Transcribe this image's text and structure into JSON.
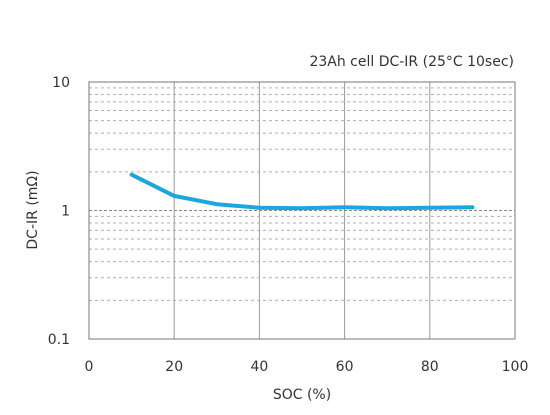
{
  "chart_data": {
    "type": "line",
    "title": "23Ah cell DC-IR (25°C 10sec)",
    "xlabel": "SOC (%)",
    "ylabel": "DC-IR (mΩ)",
    "xlim": [
      0,
      100
    ],
    "ylim": [
      0.1,
      10
    ],
    "yscale": "log",
    "x_ticks": [
      0,
      20,
      40,
      60,
      80,
      100
    ],
    "y_ticks": [
      {
        "value": 0.1,
        "label": "0.1"
      },
      {
        "value": 1,
        "label": "1"
      },
      {
        "value": 10,
        "label": "10"
      }
    ],
    "grid": true,
    "legend": "none",
    "series": [
      {
        "color": "#1aa7e0",
        "x": [
          10,
          20,
          30,
          40,
          50,
          60,
          70,
          80,
          90
        ],
        "y": [
          1.9,
          1.3,
          1.12,
          1.05,
          1.04,
          1.06,
          1.04,
          1.05,
          1.06
        ]
      }
    ]
  }
}
